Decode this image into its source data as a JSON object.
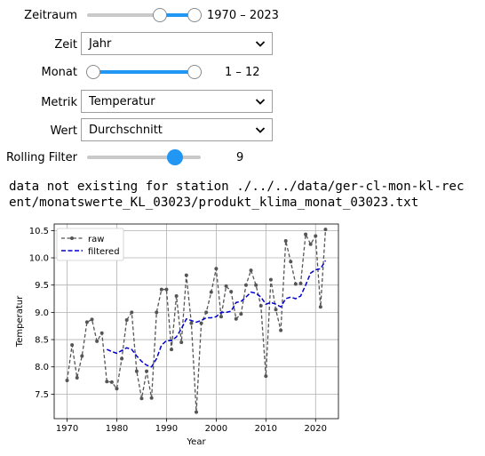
{
  "controls": {
    "zeitraum": {
      "label": "Zeitraum",
      "readout": "1970 – 2023",
      "min": 1870,
      "max": 2023,
      "low": 1970,
      "high": 2023
    },
    "zeit": {
      "label": "Zeit",
      "value": "Jahr"
    },
    "monat": {
      "label": "Monat",
      "readout": "1 – 12",
      "min": 1,
      "max": 12,
      "low": 1,
      "high": 12
    },
    "metrik": {
      "label": "Metrik",
      "value": "Temperatur"
    },
    "wert": {
      "label": "Wert",
      "value": "Durchschnitt"
    },
    "rolling": {
      "label": "Rolling Filter",
      "readout": "9",
      "min": 1,
      "max": 11,
      "value": 9
    }
  },
  "message": "data not existing for station ./../../data/ger-cl-mon-kl-rec\nent/monatswerte_KL_03023/produkt_klima_monat_03023.txt",
  "colors": {
    "accent": "#2196f3",
    "raw": "#555555",
    "filtered": "#0000cc"
  },
  "chart_data": {
    "type": "line",
    "title": "",
    "xlabel": "Year",
    "ylabel": "Temperatur",
    "xlim": [
      1967.4,
      2024.6
    ],
    "ylim": [
      7.05,
      10.62
    ],
    "xticks": [
      1970,
      1980,
      1990,
      2000,
      2010,
      2020
    ],
    "yticks": [
      7.5,
      8.0,
      8.5,
      9.0,
      9.5,
      10.0,
      10.5
    ],
    "legend": "top-left",
    "grid": true,
    "series": [
      {
        "name": "raw",
        "style": "dashed-with-points",
        "x": [
          1970,
          1971,
          1972,
          1973,
          1974,
          1975,
          1976,
          1977,
          1978,
          1979,
          1980,
          1981,
          1982,
          1983,
          1984,
          1985,
          1986,
          1987,
          1988,
          1989,
          1990,
          1991,
          1992,
          1993,
          1994,
          1995,
          1996,
          1997,
          1998,
          1999,
          2000,
          2001,
          2002,
          2003,
          2004,
          2005,
          2006,
          2007,
          2008,
          2009,
          2010,
          2011,
          2012,
          2013,
          2014,
          2015,
          2016,
          2017,
          2018,
          2019,
          2020,
          2021,
          2022
        ],
        "y": [
          7.75,
          8.4,
          7.8,
          8.2,
          8.82,
          8.87,
          8.47,
          8.62,
          7.73,
          7.72,
          7.6,
          8.15,
          8.86,
          9.0,
          7.92,
          7.42,
          7.92,
          7.43,
          9.0,
          9.42,
          9.42,
          8.32,
          9.3,
          8.45,
          9.68,
          8.8,
          7.17,
          8.8,
          9.0,
          9.37,
          9.8,
          8.92,
          9.48,
          9.38,
          8.88,
          8.97,
          9.5,
          9.77,
          9.5,
          9.12,
          7.83,
          9.6,
          9.05,
          8.67,
          10.31,
          9.93,
          9.52,
          9.53,
          10.43,
          10.25,
          10.4,
          9.1,
          10.52
        ]
      },
      {
        "name": "filtered",
        "style": "dashed",
        "x": [
          1978,
          1979,
          1980,
          1981,
          1982,
          1983,
          1984,
          1985,
          1986,
          1987,
          1988,
          1989,
          1990,
          1991,
          1992,
          1993,
          1994,
          1995,
          1996,
          1997,
          1998,
          1999,
          2000,
          2001,
          2002,
          2003,
          2004,
          2005,
          2006,
          2007,
          2008,
          2009,
          2010,
          2011,
          2012,
          2013,
          2014,
          2015,
          2016,
          2017,
          2018,
          2019,
          2020,
          2021,
          2022
        ],
        "y": [
          8.32,
          8.28,
          8.25,
          8.3,
          8.35,
          8.32,
          8.2,
          8.1,
          8.03,
          8.0,
          8.15,
          8.4,
          8.48,
          8.48,
          8.55,
          8.7,
          8.88,
          8.85,
          8.82,
          8.85,
          8.9,
          8.9,
          8.92,
          9.0,
          9.0,
          9.02,
          9.18,
          9.2,
          9.28,
          9.37,
          9.35,
          9.28,
          9.15,
          9.18,
          9.15,
          9.1,
          9.25,
          9.28,
          9.25,
          9.3,
          9.5,
          9.72,
          9.78,
          9.8,
          9.95
        ]
      }
    ]
  }
}
